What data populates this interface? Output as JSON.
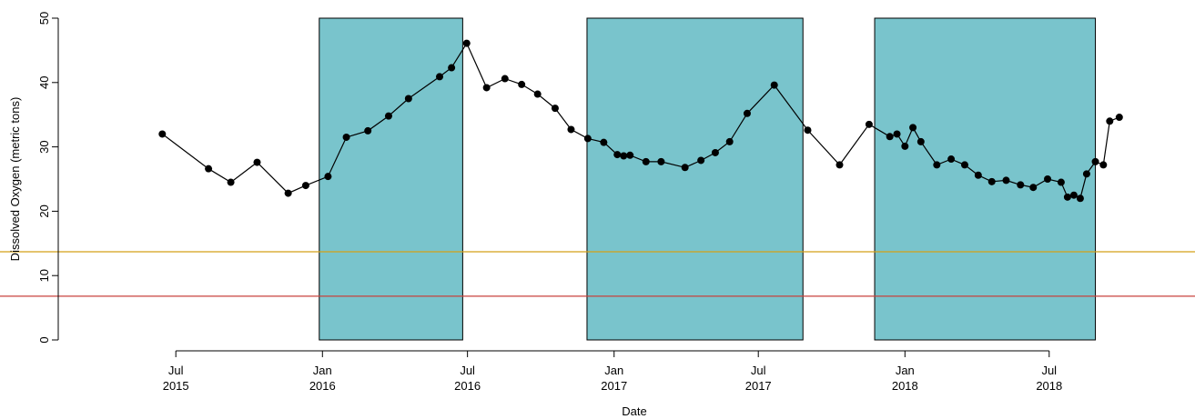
{
  "chart_data": {
    "type": "line",
    "xlabel": "Date",
    "ylabel": "Dissolved Oxygen (metric tons)",
    "ylim": [
      0,
      50
    ],
    "y_ticks": [
      0,
      10,
      20,
      30,
      40,
      50
    ],
    "xlim": [
      "2015-02-24",
      "2018-12-31"
    ],
    "x_ticks": [
      {
        "date": "2015-07-01",
        "label1": "Jul",
        "label2": "2015"
      },
      {
        "date": "2016-01-01",
        "label1": "Jan",
        "label2": "2016"
      },
      {
        "date": "2016-07-01",
        "label1": "Jul",
        "label2": "2016"
      },
      {
        "date": "2017-01-01",
        "label1": "Jan",
        "label2": "2017"
      },
      {
        "date": "2017-07-01",
        "label1": "Jul",
        "label2": "2017"
      },
      {
        "date": "2018-01-01",
        "label1": "Jan",
        "label2": "2018"
      },
      {
        "date": "2018-07-01",
        "label1": "Jul",
        "label2": "2018"
      }
    ],
    "grid": false,
    "shaded_periods": [
      {
        "start": "2015-12-28",
        "end": "2016-06-25",
        "color": "#79c4cc"
      },
      {
        "start": "2016-11-28",
        "end": "2017-08-26",
        "color": "#79c4cc"
      },
      {
        "start": "2017-11-24",
        "end": "2018-08-28",
        "color": "#79c4cc"
      }
    ],
    "reference_lines": [
      {
        "y": 13.7,
        "color": "#d4a017"
      },
      {
        "y": 6.8,
        "color": "#c8423d"
      }
    ],
    "series": [
      {
        "color": "#000000",
        "x": [
          "2015-06-14",
          "2015-08-11",
          "2015-09-08",
          "2015-10-11",
          "2015-11-19",
          "2015-12-11",
          "2016-01-08",
          "2016-01-31",
          "2016-02-27",
          "2016-03-24",
          "2016-04-18",
          "2016-05-03",
          "2016-05-28",
          "2016-06-22",
          "2016-07-16",
          "2016-08-10",
          "2016-09-03",
          "2016-09-27",
          "2016-10-20",
          "2016-11-14",
          "2016-12-09",
          "2017-01-04",
          "2017-02-02",
          "2017-03-04",
          "2017-04-02",
          "2017-04-27",
          "2017-05-25",
          "2017-06-19",
          "2017-07-15",
          "2017-08-08",
          "2017-09-02",
          "2017-09-27",
          "2017-10-25",
          "2017-11-24",
          "2018-01-07",
          "2018-01-27",
          "2018-02-22",
          "2018-03-22",
          "2018-04-20",
          "2018-05-14",
          "2018-06-11",
          "2018-06-30",
          "2018-07-06",
          "2018-08-03",
          "2018-08-31",
          "2018-09-24",
          "2018-10-25",
          "2018-11-24",
          "2018-12-20",
          "2019-01-01"
        ],
        "y": [
          32.0,
          26.6,
          24.5,
          27.6,
          22.8,
          24.0,
          25.4,
          31.5,
          32.5,
          34.8,
          37.5,
          null,
          null,
          40.9,
          42.3,
          46.1,
          39.2,
          40.6,
          39.7,
          38.2,
          36.0,
          32.7,
          31.3,
          30.7,
          28.8,
          28.6,
          28.7,
          27.7,
          27.7,
          26.8,
          27.9,
          29.1,
          30.8,
          35.2,
          39.6,
          32.6,
          27.2,
          33.5,
          31.6,
          null,
          null,
          null,
          null,
          null,
          null,
          null,
          null,
          null,
          null,
          null
        ]
      }
    ],
    "points": [
      [
        "2015-06-14",
        32.0
      ],
      [
        "2015-08-11",
        26.6
      ],
      [
        "2015-09-08",
        24.5
      ],
      [
        "2015-10-11",
        27.6
      ],
      [
        "2015-11-19",
        22.8
      ],
      [
        "2015-12-11",
        24.0
      ],
      [
        "2016-01-08",
        25.4
      ],
      [
        "2016-01-31",
        31.5
      ],
      [
        "2016-02-27",
        32.5
      ],
      [
        "2016-03-24",
        34.8
      ],
      [
        "2016-04-18",
        37.5
      ],
      [
        "2016-05-27",
        40.9
      ],
      [
        "2016-06-11",
        42.3
      ],
      [
        "2016-06-30",
        46.1
      ],
      [
        "2016-07-25",
        39.2
      ],
      [
        "2016-08-17",
        40.6
      ],
      [
        "2016-09-07",
        39.7
      ],
      [
        "2016-09-27",
        38.2
      ],
      [
        "2016-10-19",
        36.0
      ],
      [
        "2016-11-08",
        32.7
      ],
      [
        "2016-11-29",
        31.3
      ],
      [
        "2016-12-19",
        30.7
      ],
      [
        "2017-01-05",
        28.8
      ],
      [
        "2017-01-13",
        28.6
      ],
      [
        "2017-01-21",
        28.7
      ],
      [
        "2017-02-10",
        27.7
      ],
      [
        "2017-03-01",
        27.7
      ],
      [
        "2017-03-31",
        26.8
      ],
      [
        "2017-04-20",
        27.9
      ],
      [
        "2017-05-08",
        29.1
      ],
      [
        "2017-05-26",
        30.8
      ],
      [
        "2017-06-17",
        35.2
      ],
      [
        "2017-07-21",
        39.6
      ],
      [
        "2017-09-01",
        32.6
      ],
      [
        "2017-10-11",
        27.2
      ],
      [
        "2017-11-17",
        33.5
      ],
      [
        "2017-12-13",
        31.6
      ],
      [
        "2017-12-22",
        32.0
      ],
      [
        "2018-01-01",
        30.1
      ],
      [
        "2018-01-11",
        33.0
      ],
      [
        "2018-01-21",
        30.8
      ],
      [
        "2018-02-10",
        27.2
      ],
      [
        "2018-02-28",
        28.1
      ],
      [
        "2018-03-17",
        27.2
      ],
      [
        "2018-04-03",
        25.6
      ],
      [
        "2018-04-20",
        24.6
      ],
      [
        "2018-05-08",
        24.8
      ],
      [
        "2018-05-26",
        24.1
      ],
      [
        "2018-06-11",
        23.7
      ],
      [
        "2018-06-29",
        25.0
      ],
      [
        "2018-07-16",
        24.5
      ],
      [
        "2018-07-24",
        22.2
      ],
      [
        "2018-08-01",
        22.5
      ],
      [
        "2018-08-09",
        22.0
      ],
      [
        "2018-08-17",
        25.8
      ],
      [
        "2018-08-28",
        27.7
      ],
      [
        "2018-09-07",
        27.2
      ],
      [
        "2018-09-15",
        34.0
      ],
      [
        "2018-09-27",
        34.6
      ]
    ]
  }
}
